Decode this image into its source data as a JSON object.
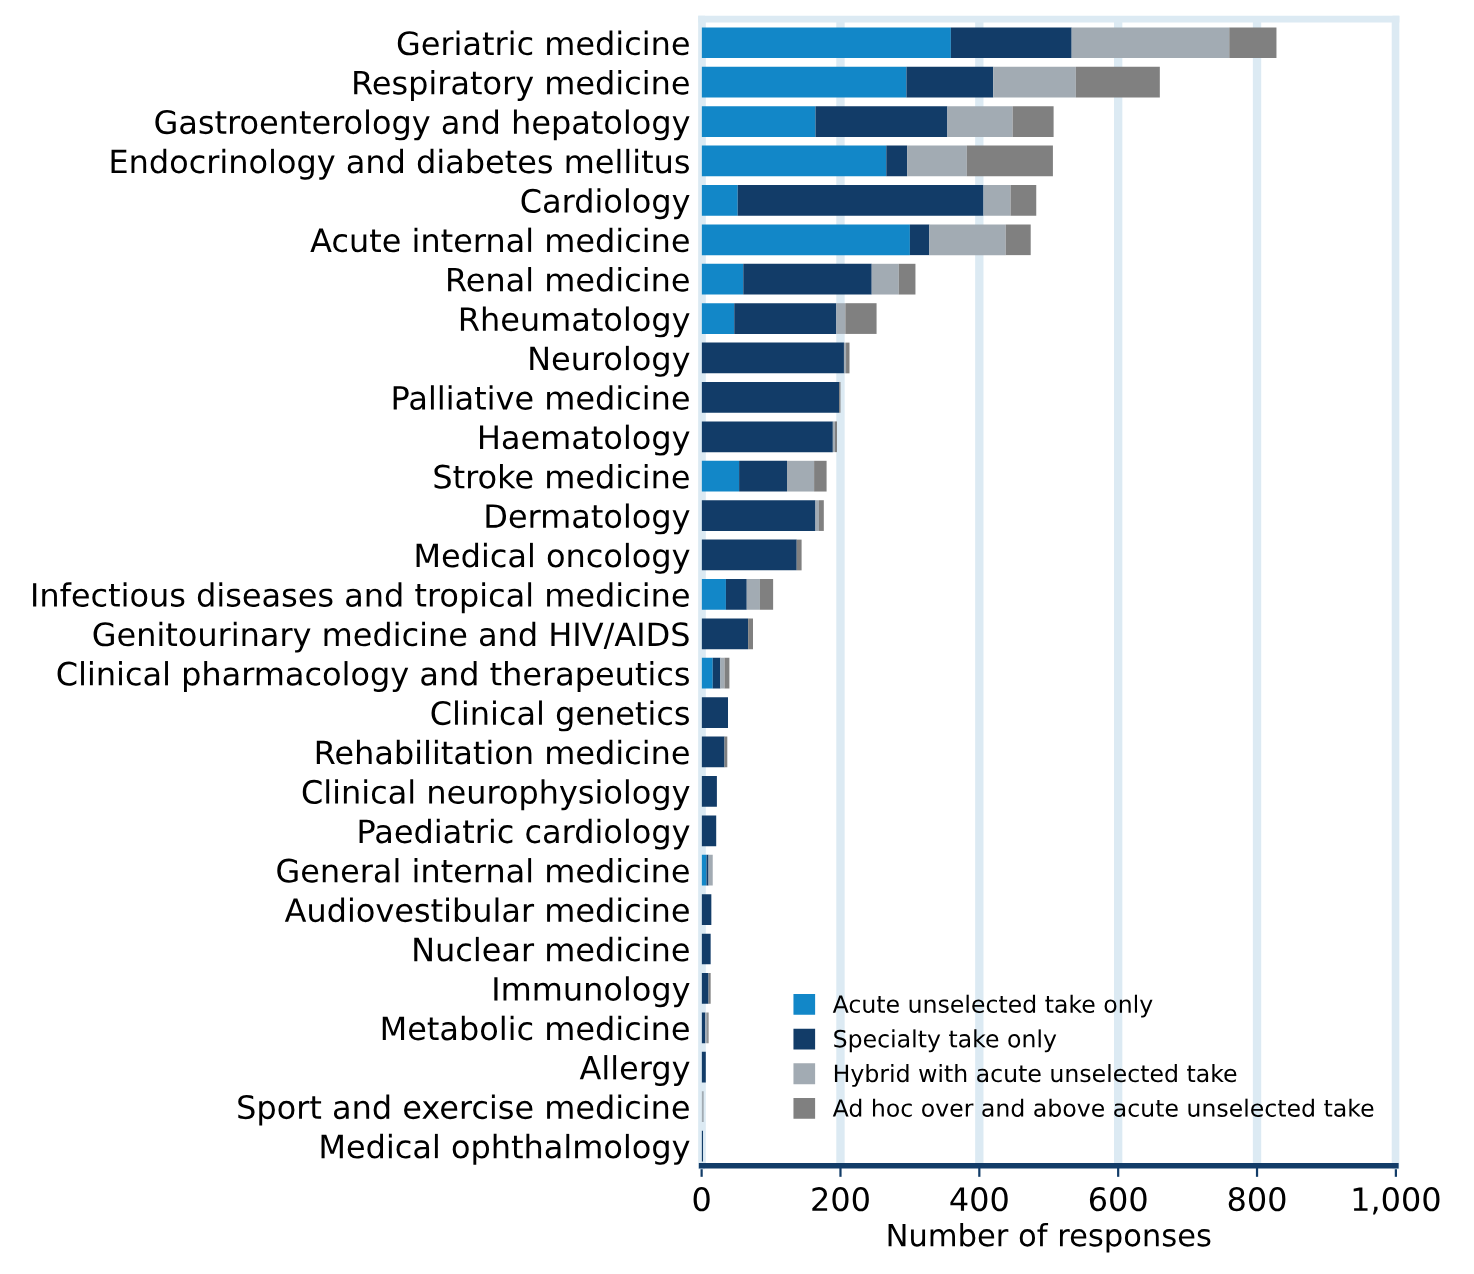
{
  "chart_data": {
    "type": "bar",
    "orientation": "horizontal",
    "stacked": true,
    "categories": [
      "Geriatric medicine",
      "Respiratory medicine",
      "Gastroenterology and hepatology",
      "Endocrinology and diabetes mellitus",
      "Cardiology",
      "Acute internal medicine",
      "Renal medicine",
      "Rheumatology",
      "Neurology",
      "Palliative medicine",
      "Haematology",
      "Stroke medicine",
      "Dermatology",
      "Medical oncology",
      "Infectious diseases and tropical medicine",
      "Genitourinary medicine and HIV/AIDS",
      "Clinical pharmacology and therapeutics",
      "Clinical genetics",
      "Rehabilitation medicine",
      "Clinical neurophysiology",
      "Paediatric cardiology",
      "General internal medicine",
      "Audiovestibular medicine",
      "Nuclear medicine",
      "Immunology",
      "Metabolic medicine",
      "Allergy",
      "Sport and exercise medicine",
      "Medical ophthalmology"
    ],
    "series": [
      {
        "name": "Acute unselected take only",
        "color": "#1287c8",
        "values": [
          359,
          295,
          164,
          266,
          52,
          300,
          60,
          47,
          0,
          0,
          0,
          54,
          0,
          0,
          35,
          0,
          16,
          0,
          0,
          0,
          0,
          7,
          0,
          0,
          0,
          0,
          0,
          0,
          0
        ]
      },
      {
        "name": "Specialty take only",
        "color": "#123c68",
        "values": [
          174,
          125,
          190,
          30,
          354,
          28,
          185,
          147,
          205,
          198,
          189,
          69,
          164,
          137,
          30,
          67,
          11,
          38,
          33,
          22,
          21,
          3,
          14,
          13,
          10,
          5,
          6,
          0,
          2
        ]
      },
      {
        "name": "Hybrid with acute unselected take",
        "color": "#a2abb3",
        "values": [
          227,
          119,
          94,
          86,
          39,
          110,
          39,
          13,
          3,
          0,
          3,
          39,
          5,
          0,
          19,
          0,
          6,
          0,
          0,
          0,
          0,
          6,
          0,
          0,
          0,
          3,
          0,
          3,
          0
        ]
      },
      {
        "name": "Ad hoc over and above acute unselected take",
        "color": "#808080",
        "values": [
          68,
          121,
          59,
          124,
          37,
          36,
          24,
          45,
          5,
          2,
          3,
          18,
          7,
          7,
          19,
          7,
          7,
          0,
          4,
          0,
          0,
          0,
          0,
          0,
          3,
          2,
          0,
          0,
          0
        ]
      }
    ],
    "xlabel": "Number of responses",
    "xlim": [
      0,
      1000
    ],
    "xticks": [
      0,
      200,
      400,
      600,
      800,
      {
        "value": 1000,
        "label": "1,000"
      }
    ],
    "grid": "x",
    "legend": "bottom right"
  }
}
